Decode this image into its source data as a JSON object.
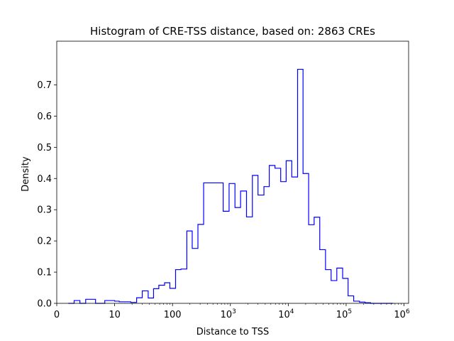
{
  "chart_data": {
    "type": "histogram",
    "title": "Histogram of CRE-TSS distance, based on: 2863 CREs",
    "xlabel": "Distance to TSS",
    "ylabel": "Density",
    "x_scale": "symlog",
    "xlim": [
      0,
      1200000
    ],
    "ylim": [
      0,
      0.84
    ],
    "x_ticks": [
      {
        "value": 0,
        "base": "0",
        "exp": ""
      },
      {
        "value": 10,
        "base": "10",
        "exp": ""
      },
      {
        "value": 100,
        "base": "100",
        "exp": ""
      },
      {
        "value": 1000,
        "base": "10",
        "exp": "3"
      },
      {
        "value": 10000,
        "base": "10",
        "exp": "4"
      },
      {
        "value": 100000,
        "base": "10",
        "exp": "5"
      },
      {
        "value": 1000000,
        "base": "10",
        "exp": "6"
      }
    ],
    "y_ticks": [
      0.0,
      0.1,
      0.2,
      0.3,
      0.4,
      0.5,
      0.6,
      0.7
    ],
    "y_tick_labels": [
      "0.0",
      "0.1",
      "0.2",
      "0.3",
      "0.4",
      "0.5",
      "0.6",
      "0.7"
    ],
    "bin_edges": [
      2.0,
      3.0,
      4.0,
      5.0,
      6.7,
      8.3,
      10,
      12,
      15,
      19,
      24,
      30,
      38,
      47,
      58,
      73,
      90,
      113,
      140,
      177,
      219,
      275,
      345,
      750,
      950,
      1200,
      1500,
      1900,
      2400,
      3000,
      3800,
      4700,
      5900,
      7400,
      9200,
      11500,
      14500,
      18000,
      22500,
      28000,
      35000,
      44000,
      55000,
      69000,
      87000,
      108000,
      135000,
      170000,
      212000,
      265000,
      332000,
      415000,
      520000,
      650000
    ],
    "densities": [
      0.0,
      0.009,
      0.0,
      0.013,
      0.0,
      0.009,
      0.007,
      0.005,
      0.005,
      0.003,
      0.018,
      0.04,
      0.017,
      0.047,
      0.058,
      0.066,
      0.048,
      0.108,
      0.11,
      0.232,
      0.176,
      0.253,
      0.386,
      0.295,
      0.384,
      0.307,
      0.36,
      0.277,
      0.41,
      0.347,
      0.374,
      0.442,
      0.433,
      0.39,
      0.457,
      0.405,
      0.75,
      0.416,
      0.252,
      0.276,
      0.172,
      0.108,
      0.073,
      0.113,
      0.08,
      0.024,
      0.007,
      0.004,
      0.002,
      0.0,
      0.0,
      0.0,
      0.0
    ],
    "color": "#0000ff",
    "grid": false,
    "legend": "none"
  }
}
